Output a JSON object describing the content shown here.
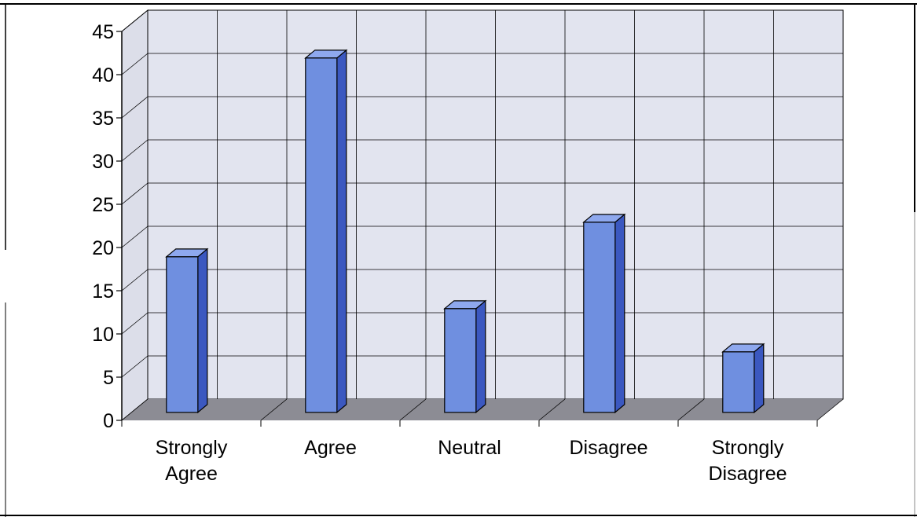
{
  "chart_data": {
    "type": "bar",
    "categories": [
      [
        "Strongly",
        "Agree"
      ],
      [
        "Agree"
      ],
      [
        "Neutral"
      ],
      [
        "Disagree"
      ],
      [
        "Strongly",
        "Disagree"
      ]
    ],
    "values": [
      18,
      41,
      12,
      22,
      7
    ],
    "ylim": [
      0,
      45
    ],
    "yticks": [
      "0",
      "5",
      "10",
      "15",
      "20",
      "25",
      "30",
      "35",
      "40",
      "45"
    ],
    "grid": true,
    "legend": "none",
    "title": "",
    "xlabel": "",
    "ylabel": "",
    "colors": {
      "bar_front": "#6f8fe0",
      "bar_side": "#3b58c0",
      "bar_top": "#8ea8ee",
      "wall": "#e2e4ef",
      "floor": "#8c8c94",
      "grid": "#000000"
    }
  }
}
